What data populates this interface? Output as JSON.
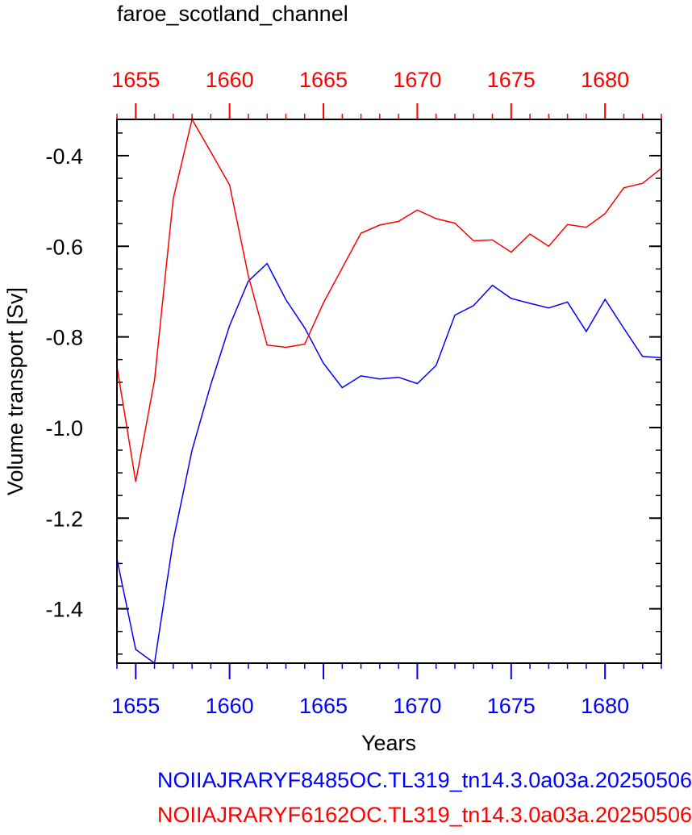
{
  "chart_data": {
    "type": "line",
    "title": "faroe_scotland_channel",
    "xlabel": "Years",
    "ylabel": "Volume transport [Sv]",
    "xlim": [
      1654,
      1683
    ],
    "ylim": [
      -1.52,
      -0.32
    ],
    "x_ticks": [
      1655,
      1660,
      1665,
      1670,
      1675,
      1680
    ],
    "y_ticks": [
      -0.4,
      -0.6,
      -0.8,
      -1.0,
      -1.2,
      -1.4
    ],
    "x_tick_labels": [
      "1655",
      "1660",
      "1665",
      "1670",
      "1675",
      "1680"
    ],
    "y_tick_labels": [
      "-0.4",
      "-0.6",
      "-0.8",
      "-1.0",
      "-1.2",
      "-1.4"
    ],
    "top_axis_color": "#ff0000",
    "bottom_axis_color": "#0000ff",
    "series": [
      {
        "name": "NOIIAJRARYF8485OC.TL319_tn14.3.0a03a.20250506",
        "color": "#0000ff",
        "x": [
          1654,
          1655,
          1656,
          1657,
          1658,
          1659,
          1660,
          1661,
          1662,
          1663,
          1664,
          1665,
          1666,
          1667,
          1668,
          1669,
          1670,
          1671,
          1672,
          1673,
          1674,
          1675,
          1676,
          1677,
          1678,
          1679,
          1680,
          1681,
          1682,
          1683
        ],
        "y": [
          -1.29,
          -1.49,
          -1.52,
          -1.25,
          -1.05,
          -0.905,
          -0.775,
          -0.677,
          -0.638,
          -0.718,
          -0.78,
          -0.858,
          -0.912,
          -0.886,
          -0.893,
          -0.889,
          -0.903,
          -0.863,
          -0.752,
          -0.731,
          -0.686,
          -0.715,
          -0.726,
          -0.736,
          -0.723,
          -0.788,
          -0.717,
          -0.781,
          -0.843,
          -0.846
        ]
      },
      {
        "name": "NOIIAJRARYF6162OC.TL319_tn14.3.0a03a.20250506",
        "color": "#ff0000",
        "x": [
          1654,
          1655,
          1656,
          1657,
          1658,
          1659,
          1660,
          1661,
          1662,
          1663,
          1664,
          1665,
          1666,
          1667,
          1668,
          1669,
          1670,
          1671,
          1672,
          1673,
          1674,
          1675,
          1676,
          1677,
          1678,
          1679,
          1680,
          1681,
          1682,
          1683
        ],
        "y": [
          -0.865,
          -1.12,
          -0.895,
          -0.495,
          -0.32,
          -0.392,
          -0.465,
          -0.665,
          -0.818,
          -0.823,
          -0.816,
          -0.725,
          -0.648,
          -0.571,
          -0.553,
          -0.545,
          -0.52,
          -0.539,
          -0.549,
          -0.588,
          -0.586,
          -0.613,
          -0.573,
          -0.6,
          -0.552,
          -0.558,
          -0.528,
          -0.471,
          -0.461,
          -0.428
        ]
      }
    ]
  }
}
